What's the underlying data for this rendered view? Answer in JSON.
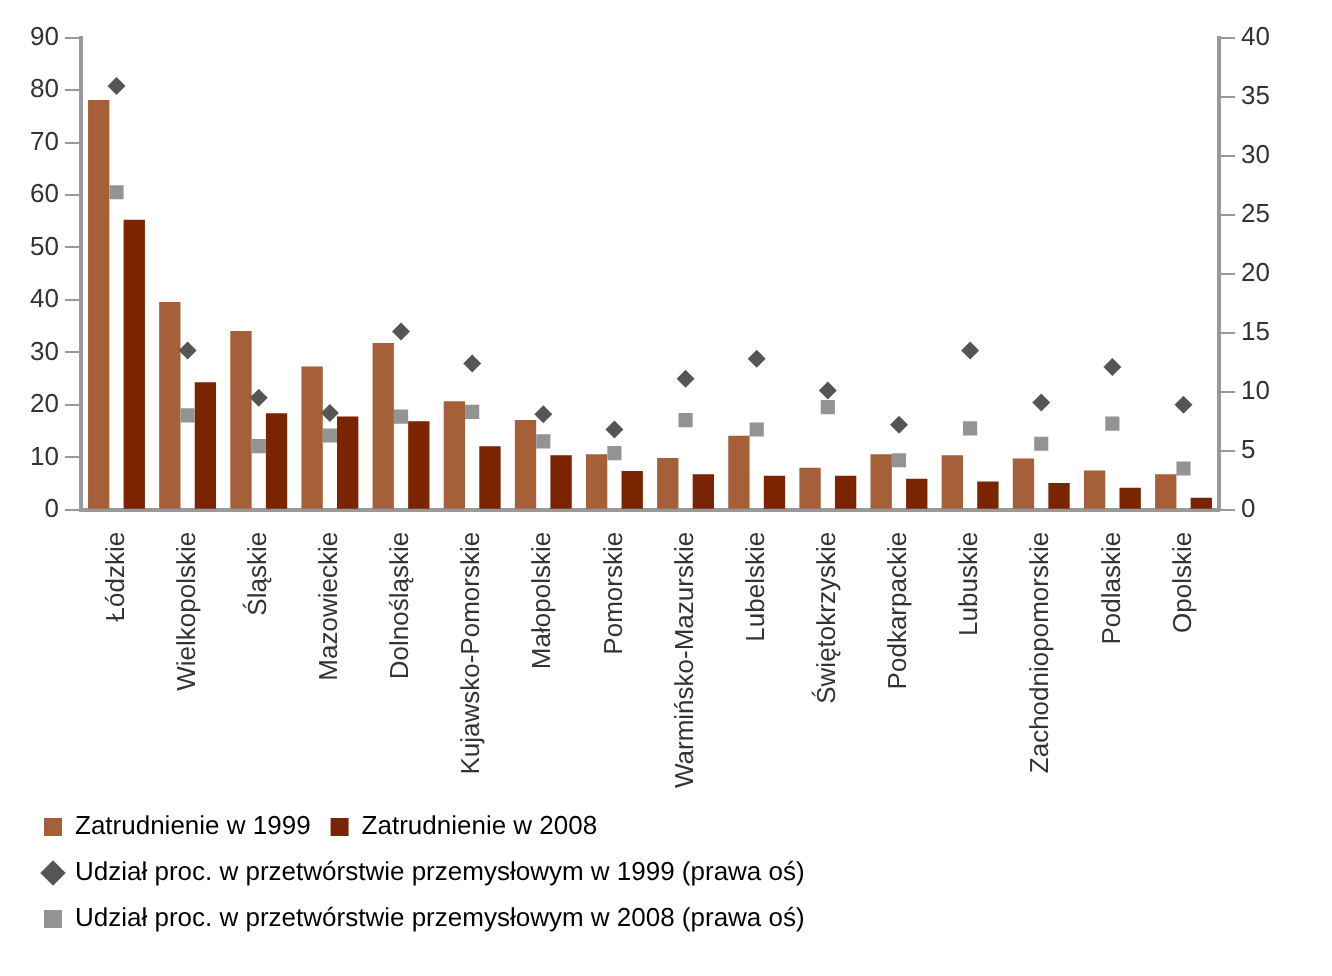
{
  "chart_data": {
    "type": "bar",
    "categories": [
      "Łódzkie",
      "Wielkopolskie",
      "Śląskie",
      "Mazowieckie",
      "Dolnośląskie",
      "Kujawsko-Pomorskie",
      "Małopolskie",
      "Pomorskie",
      "Warmińsko-Mazurskie",
      "Lubelskie",
      "Świętokrzyskie",
      "Podkarpackie",
      "Lubuskie",
      "Zachodniopomorskie",
      "Podlaskie",
      "Opolskie"
    ],
    "series": [
      {
        "name": "Zatrudnienie w 1999",
        "color": "#a5603a",
        "values": [
          78.1,
          39.6,
          34.1,
          27.3,
          31.8,
          20.7,
          17.1,
          10.6,
          9.9,
          14.1,
          8.0,
          10.6,
          10.4,
          9.8,
          7.5,
          6.8
        ]
      },
      {
        "name": "Zatrudnienie w 2008",
        "color": "#7b2500",
        "values": [
          55.3,
          24.3,
          18.4,
          17.8,
          16.9,
          12.1,
          10.4,
          7.4,
          6.8,
          6.5,
          6.5,
          5.9,
          5.4,
          5.1,
          4.2,
          2.3
        ]
      },
      {
        "name": "Udział proc. w przetwórstwie przemysłowym w 1999 (prawa oś)",
        "type": "scatter",
        "marker": "diamond",
        "axis": "y2",
        "color": "#555555",
        "values": [
          35.9,
          13.5,
          9.5,
          8.2,
          15.1,
          12.4,
          8.1,
          6.8,
          11.1,
          12.8,
          10.1,
          7.2,
          13.5,
          9.1,
          12.1,
          8.9
        ]
      },
      {
        "name": "Udział proc. w przetwórstwie przemysłowym w 2008 (prawa oś)",
        "type": "scatter",
        "marker": "square",
        "axis": "y2",
        "color": "#939393",
        "values": [
          26.9,
          8.0,
          5.4,
          6.3,
          7.9,
          8.3,
          5.8,
          4.8,
          7.6,
          6.8,
          8.7,
          4.2,
          6.9,
          5.6,
          7.3,
          3.5
        ]
      }
    ],
    "ylim": [
      0,
      90
    ],
    "yticks": [
      0,
      10,
      20,
      30,
      40,
      50,
      60,
      70,
      80,
      90
    ],
    "y2lim": [
      0,
      40
    ],
    "y2ticks": [
      0,
      5,
      10,
      15,
      20,
      25,
      30,
      35,
      40
    ],
    "grid": false,
    "legend": "bottom"
  }
}
